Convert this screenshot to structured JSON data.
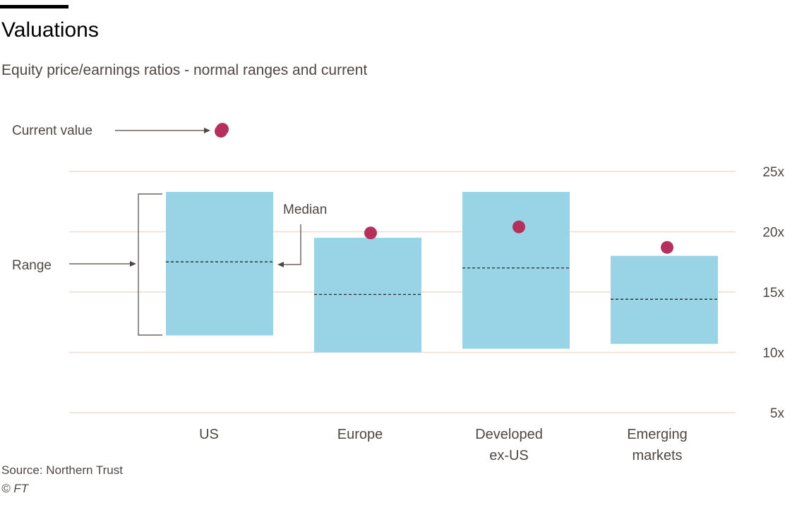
{
  "header": {
    "title": "Valuations",
    "subtitle": "Equity price/earnings ratios - normal ranges and current"
  },
  "footer": {
    "source": "Source: Northern Trust",
    "copyright": "© FT"
  },
  "annotations": {
    "current_value": "Current value",
    "median": "Median",
    "range": "Range"
  },
  "colors": {
    "range_fill": "#99d3e6",
    "dot": "#b5305c",
    "grid": "#eddcd4",
    "median_line": "#333333"
  },
  "chart_data": {
    "type": "range",
    "title": "Valuations",
    "subtitle": "Equity price/earnings ratios - normal ranges and current",
    "y_unit_suffix": "x",
    "ylim": [
      5,
      25
    ],
    "y_ticks": [
      5,
      10,
      15,
      20,
      25
    ],
    "y_tick_labels": [
      "5x",
      "10x",
      "15x",
      "20x",
      "25x"
    ],
    "grid": true,
    "categories": [
      {
        "label_lines": [
          "US"
        ],
        "low": 11.4,
        "high": 23.3,
        "median": 17.5,
        "current": 28.5
      },
      {
        "label_lines": [
          "Europe"
        ],
        "low": 10.0,
        "high": 19.5,
        "median": 14.8,
        "current": 19.9
      },
      {
        "label_lines": [
          "Developed",
          "ex-US"
        ],
        "low": 10.3,
        "high": 23.3,
        "median": 17.0,
        "current": 20.4
      },
      {
        "label_lines": [
          "Emerging",
          "markets"
        ],
        "low": 10.7,
        "high": 18.0,
        "median": 14.4,
        "current": 18.7
      }
    ]
  }
}
